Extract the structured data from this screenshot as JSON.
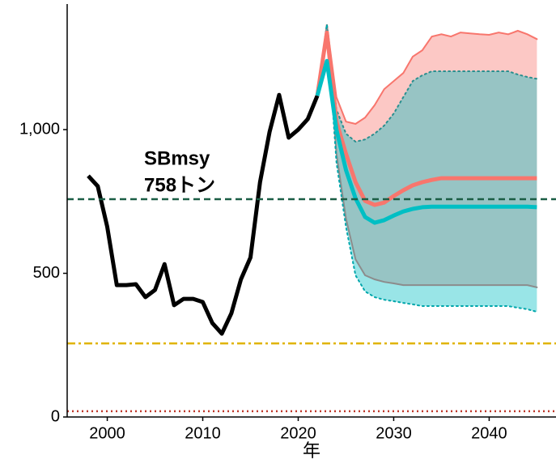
{
  "chart_data": {
    "type": "line",
    "xlabel": "年",
    "annotation": [
      "SBmsy",
      "758トン"
    ],
    "xlim": [
      1995.8,
      2047
    ],
    "ylim": [
      0,
      1437
    ],
    "xticks": [
      2000,
      2010,
      2020,
      2030,
      2040
    ],
    "yticks": [
      0,
      500,
      {
        "value": 1000,
        "label": "1,000"
      }
    ],
    "x": [
      1998,
      1999,
      2000,
      2001,
      2002,
      2003,
      2004,
      2005,
      2006,
      2007,
      2008,
      2009,
      2010,
      2011,
      2012,
      2013,
      2014,
      2015,
      2016,
      2017,
      2018,
      2019,
      2020,
      2021,
      2022,
      2023,
      2024,
      2025,
      2026,
      2027,
      2028,
      2029,
      2030,
      2031,
      2032,
      2033,
      2034,
      2035,
      2036,
      2037,
      2038,
      2039,
      2040,
      2041,
      2042,
      2043,
      2044,
      2045
    ],
    "bands": [
      {
        "color": "#F8766D",
        "upper_color": "#F8766D",
        "lower_color": "#8c8c8c",
        "dotted": false,
        "upper": [
          null,
          null,
          null,
          null,
          null,
          null,
          null,
          null,
          null,
          null,
          null,
          null,
          null,
          null,
          null,
          null,
          null,
          null,
          null,
          null,
          null,
          null,
          null,
          null,
          1118,
          1366,
          1113,
          1028,
          1020,
          1042,
          1085,
          1141,
          1169,
          1197,
          1254,
          1276,
          1324,
          1332,
          1324,
          1338,
          1335,
          1332,
          1330,
          1338,
          1332,
          1344,
          1332,
          1315
        ],
        "lower": [
          null,
          null,
          null,
          null,
          null,
          null,
          null,
          null,
          null,
          null,
          null,
          null,
          null,
          null,
          null,
          null,
          null,
          null,
          null,
          null,
          null,
          null,
          null,
          null,
          1118,
          1366,
          916,
          690,
          549,
          493,
          479,
          470,
          465,
          459,
          459,
          459,
          459,
          459,
          459,
          459,
          459,
          459,
          459,
          459,
          459,
          459,
          459,
          451
        ]
      },
      {
        "color": "#00BFC4",
        "upper_color": "#2a8f8f",
        "lower_color": "#00a6ab",
        "dotted": true,
        "upper": [
          null,
          null,
          null,
          null,
          null,
          null,
          null,
          null,
          null,
          null,
          null,
          null,
          null,
          null,
          null,
          null,
          null,
          null,
          null,
          null,
          null,
          null,
          null,
          null,
          1118,
          1366,
          1070,
          986,
          958,
          966,
          986,
          1014,
          1056,
          1113,
          1169,
          1189,
          1203,
          1203,
          1203,
          1203,
          1203,
          1203,
          1203,
          1203,
          1203,
          1192,
          1183,
          1177
        ],
        "lower": [
          null,
          null,
          null,
          null,
          null,
          null,
          null,
          null,
          null,
          null,
          null,
          null,
          null,
          null,
          null,
          null,
          null,
          null,
          null,
          null,
          null,
          null,
          null,
          null,
          1118,
          1366,
          887,
          662,
          493,
          437,
          417,
          408,
          403,
          397,
          392,
          386,
          386,
          386,
          386,
          386,
          386,
          386,
          386,
          386,
          386,
          380,
          375,
          366
        ]
      }
    ],
    "series": [
      {
        "color": "#000000",
        "width": 5,
        "values": [
          839,
          803,
          662,
          459,
          459,
          462,
          417,
          442,
          532,
          389,
          411,
          411,
          400,
          327,
          290,
          361,
          479,
          555,
          817,
          992,
          1121,
          972,
          1000,
          1037,
          1118,
          null,
          null,
          null,
          null,
          null,
          null,
          null,
          null,
          null,
          null,
          null,
          null,
          null,
          null,
          null,
          null,
          null,
          null,
          null,
          null,
          null,
          null,
          null
        ]
      },
      {
        "color": "#F8766D",
        "width": 5,
        "values": [
          null,
          null,
          null,
          null,
          null,
          null,
          null,
          null,
          null,
          null,
          null,
          null,
          null,
          null,
          null,
          null,
          null,
          null,
          null,
          null,
          null,
          null,
          null,
          null,
          1118,
          1338,
          1028,
          916,
          817,
          752,
          738,
          746,
          769,
          789,
          806,
          817,
          825,
          831,
          831,
          831,
          831,
          831,
          831,
          831,
          831,
          831,
          831,
          831
        ]
      },
      {
        "color": "#00BFC4",
        "width": 5,
        "values": [
          null,
          null,
          null,
          null,
          null,
          null,
          null,
          null,
          null,
          null,
          null,
          null,
          null,
          null,
          null,
          null,
          null,
          null,
          null,
          null,
          null,
          null,
          null,
          null,
          1118,
          1239,
          1000,
          859,
          761,
          696,
          676,
          685,
          701,
          715,
          724,
          730,
          732,
          732,
          732,
          732,
          732,
          732,
          732,
          732,
          732,
          732,
          732,
          730
        ]
      }
    ],
    "hlines": [
      {
        "value": 758,
        "color": "#1b5e45",
        "dash": "8 5"
      },
      {
        "value": 256,
        "color": "#e0b400",
        "dash": "10 4 3 4"
      },
      {
        "value": 20,
        "color": "#c0392b",
        "dash": "2 4"
      }
    ]
  }
}
